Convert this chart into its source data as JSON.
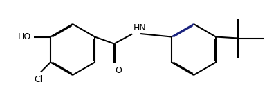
{
  "bg_color": "#ffffff",
  "line_color": "#000000",
  "line_color_blue": "#1a237e",
  "bond_lw": 1.5,
  "dbo": 0.013,
  "label_HO": "HO",
  "label_Cl": "Cl",
  "label_O": "O",
  "label_HN": "HN",
  "figsize": [
    3.99,
    1.54
  ],
  "dpi": 100,
  "xlim": [
    0,
    3.99
  ],
  "ylim": [
    0,
    1.54
  ]
}
